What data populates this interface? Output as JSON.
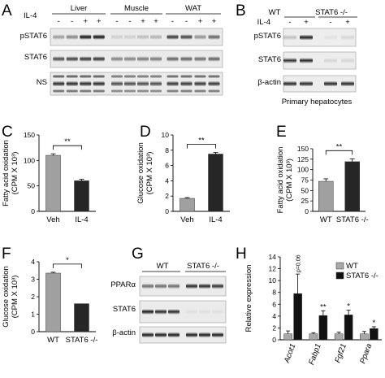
{
  "panels": {
    "A": {
      "label": "A",
      "tissues": [
        "Liver",
        "Muscle",
        "WAT"
      ],
      "il4_label": "IL-4",
      "lane_signs": [
        "-",
        "-",
        "+",
        "+",
        "-",
        "-",
        "+",
        "+",
        "-",
        "-",
        "+",
        "+"
      ],
      "rows": [
        "pSTAT6",
        "STAT6",
        "NS"
      ]
    },
    "B": {
      "label": "B",
      "groups": [
        "WT",
        "STAT6 -/-"
      ],
      "il4_label": "IL-4",
      "lane_signs": [
        "-",
        "+",
        "-",
        "+"
      ],
      "rows": [
        "pSTAT6",
        "STAT6",
        "β-actin"
      ],
      "caption": "Primary hepatocytes"
    },
    "G": {
      "label": "G",
      "groups": [
        "WT",
        "STAT6 -/-"
      ],
      "rows": [
        "PPARα",
        "STAT6",
        "β-actin"
      ]
    }
  },
  "chart_data": [
    {
      "panel": "C",
      "type": "bar",
      "categories": [
        "Veh",
        "IL-4"
      ],
      "values": [
        110,
        60
      ],
      "errors": [
        3,
        3
      ],
      "colors": [
        "#a0a0a0",
        "#262626"
      ],
      "ylabel_line1": "Fatty acid oxidation",
      "ylabel_line2": "(CPM X 10³)",
      "ylim": [
        0,
        150
      ],
      "yticks": [
        "0",
        "50",
        "100",
        "150"
      ],
      "significance": "**"
    },
    {
      "panel": "D",
      "type": "bar",
      "categories": [
        "Veh",
        "IL-4"
      ],
      "values": [
        1.7,
        7.5
      ],
      "errors": [
        0.1,
        0.2
      ],
      "colors": [
        "#a0a0a0",
        "#262626"
      ],
      "ylabel_line1": "Glucose oxidation",
      "ylabel_line2": "(CPM X 10³)",
      "ylim": [
        0,
        10
      ],
      "yticks": [
        "0",
        "2",
        "4",
        "6",
        "8",
        "10"
      ],
      "significance": "**"
    },
    {
      "panel": "E",
      "type": "bar",
      "categories": [
        "WT",
        "STAT6 -/-"
      ],
      "values": [
        72,
        119
      ],
      "errors": [
        6,
        7
      ],
      "colors": [
        "#a0a0a0",
        "#262626"
      ],
      "ylabel_line1": "Fatty acid oxidation",
      "ylabel_line2": "(CPM X 10³)",
      "ylim": [
        0,
        150
      ],
      "yticks": [
        "0",
        "25",
        "50",
        "75",
        "100",
        "125",
        "150"
      ],
      "significance": "**"
    },
    {
      "panel": "F",
      "type": "bar",
      "categories": [
        "WT",
        "STAT6 -/-"
      ],
      "values": [
        3.35,
        1.6
      ],
      "errors": [
        0.05,
        0
      ],
      "colors": [
        "#a0a0a0",
        "#262626"
      ],
      "ylabel_line1": "Glucose oxidation",
      "ylabel_line2": "(CPM X 10³)",
      "ylim": [
        0,
        4
      ],
      "yticks": [
        "0",
        "1",
        "2",
        "3",
        "4"
      ],
      "significance": "*"
    },
    {
      "panel": "H",
      "type": "bar",
      "categories": [
        "Acot1",
        "Fabp1",
        "Fgf21",
        "Ppara"
      ],
      "series": [
        {
          "name": "WT",
          "values": [
            1.0,
            1.0,
            1.0,
            1.0
          ],
          "errors": [
            0.5,
            0.2,
            0.3,
            0.4
          ],
          "color": "#a8a8a8"
        },
        {
          "name": "STAT6 -/-",
          "values": [
            7.8,
            4.1,
            4.2,
            1.9
          ],
          "errors": [
            3.3,
            0.8,
            0.8,
            0.3
          ],
          "color": "#111111"
        }
      ],
      "ylabel": "Relative expression",
      "ylim": [
        0,
        14
      ],
      "yticks": [
        "0",
        "2",
        "4",
        "6",
        "8",
        "10",
        "12",
        "14"
      ],
      "annotations": [
        "p=0.06",
        "**",
        "*",
        "*"
      ]
    }
  ]
}
